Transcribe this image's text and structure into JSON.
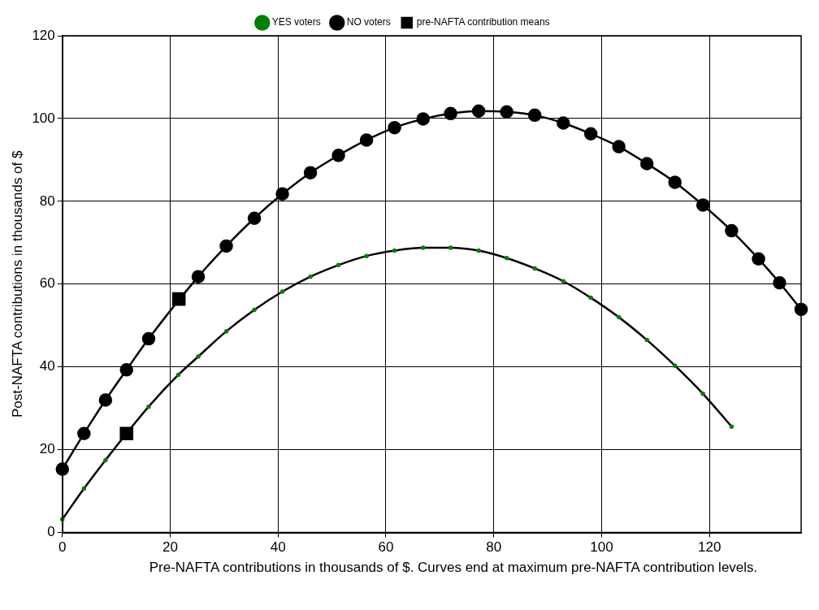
{
  "chart_data": {
    "type": "line",
    "xlabel": "Pre-NAFTA contributions in thousands of $. Curves end at maximum pre-NAFTA contribution levels.",
    "ylabel": "Post-NAFTA contributions in thousands of $",
    "xlim": [
      0,
      137
    ],
    "xticks": [
      0,
      20,
      40,
      60,
      80,
      100,
      120
    ],
    "ylim": [
      0,
      120
    ],
    "yticks": [
      0,
      20,
      40,
      60,
      80,
      100,
      120
    ],
    "grid": true,
    "legend": "top",
    "series": [
      {
        "name": "YES voters",
        "color": "#000000",
        "marker": "circle",
        "x": [
          0,
          4,
          8,
          16,
          21.5,
          25.2,
          30.4,
          35.6,
          40.8,
          46.0,
          51.2,
          56.4,
          61.6,
          66.9,
          72.0,
          77.2,
          82.4,
          87.6,
          92.9,
          98.0,
          103.2,
          108.4,
          113.6,
          118.8,
          124.1
        ],
        "values": [
          3.2,
          10.6,
          17.5,
          30.4,
          38.1,
          42.5,
          48.6,
          53.8,
          58.2,
          61.8,
          64.6,
          66.8,
          68.1,
          68.8,
          68.8,
          68.1,
          66.3,
          63.8,
          60.7,
          56.7,
          52.0,
          46.5,
          40.3,
          33.5,
          25.6
        ]
      },
      {
        "name": "NO voters",
        "color": "#000000",
        "marker": "circle",
        "x": [
          0,
          4.0,
          8.0,
          11.9,
          16.0,
          25.2,
          30.4,
          35.6,
          40.8,
          46.0,
          51.2,
          56.4,
          61.6,
          66.9,
          72.0,
          77.2,
          82.4,
          87.6,
          92.9,
          98.0,
          103.2,
          108.4,
          113.6,
          118.8,
          124.1,
          129.1,
          133.0,
          137.0
        ],
        "values": [
          15.3,
          23.9,
          32.0,
          39.3,
          46.8,
          61.8,
          69.2,
          75.9,
          81.8,
          86.9,
          91.1,
          94.8,
          97.8,
          99.9,
          101.2,
          101.8,
          101.6,
          100.8,
          98.9,
          96.3,
          93.2,
          89.1,
          84.6,
          79.1,
          72.9,
          66.1,
          60.3,
          53.9
        ]
      },
      {
        "name": "pre-NAFTA contribution means",
        "type": "scatter",
        "color": "#000000",
        "marker": "square",
        "x": [
          11.9,
          21.6
        ],
        "values": [
          23.9,
          56.4
        ]
      }
    ]
  }
}
